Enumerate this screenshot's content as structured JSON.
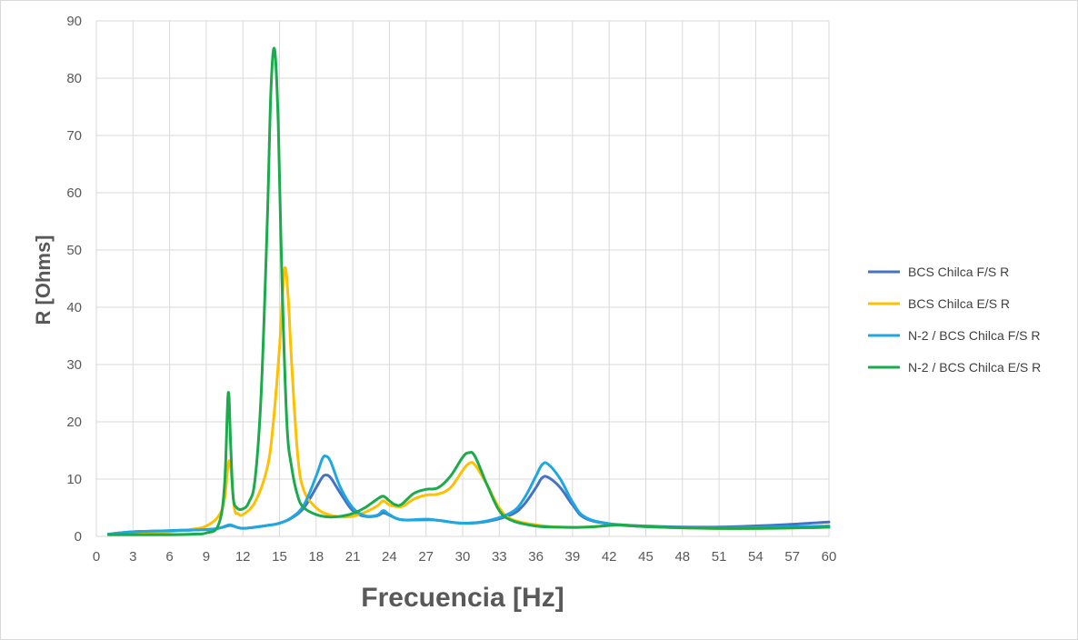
{
  "chart_data": {
    "type": "line",
    "title": "",
    "xlabel": "Frecuencia [Hz]",
    "ylabel": "R [Ohms]",
    "xlim": [
      0,
      60
    ],
    "ylim": [
      0,
      90
    ],
    "x_ticks": [
      0,
      3,
      6,
      9,
      12,
      15,
      18,
      21,
      24,
      27,
      30,
      33,
      36,
      39,
      42,
      45,
      48,
      51,
      54,
      57,
      60
    ],
    "y_ticks": [
      0,
      10,
      20,
      30,
      40,
      50,
      60,
      70,
      80,
      90
    ],
    "grid": true,
    "legend_position": "right",
    "series": [
      {
        "name": "BCS Chilca F/S R",
        "color": "#4472C4",
        "x": [
          1,
          3,
          6,
          9,
          10,
          10.7,
          11,
          11.5,
          12,
          13,
          14,
          15,
          16,
          17,
          18,
          18.5,
          18.8,
          19.2,
          20,
          21,
          22,
          23,
          23.5,
          24,
          25,
          27,
          28,
          30,
          32,
          34,
          35,
          36,
          36.5,
          37,
          38,
          39,
          40,
          42,
          45,
          50,
          55,
          60
        ],
        "y": [
          0.4,
          0.8,
          1.0,
          1.2,
          1.4,
          1.8,
          1.9,
          1.6,
          1.4,
          1.6,
          1.9,
          2.3,
          3.2,
          5.0,
          8.5,
          10.3,
          10.7,
          10.2,
          7.5,
          4.5,
          3.5,
          3.6,
          4.1,
          3.7,
          2.9,
          2.9,
          2.8,
          2.3,
          2.6,
          3.8,
          5.5,
          8.5,
          10.2,
          10.3,
          8.5,
          5.5,
          3.2,
          2.2,
          1.8,
          1.6,
          1.9,
          2.5
        ]
      },
      {
        "name": "BCS Chilca E/S R",
        "color": "#FFC000",
        "x": [
          1,
          3,
          6,
          8,
          9,
          10,
          10.5,
          10.9,
          11.3,
          11.6,
          12,
          13,
          14,
          14.5,
          15,
          15.4,
          15.7,
          16,
          16.5,
          17,
          18,
          19,
          20,
          21,
          22,
          23,
          23.5,
          24,
          25,
          26,
          27,
          28,
          29,
          30,
          30.5,
          31,
          32,
          33,
          34,
          36,
          38,
          40,
          42,
          43,
          45,
          50,
          55,
          60
        ],
        "y": [
          0.3,
          0.4,
          0.8,
          1.3,
          1.8,
          3.5,
          6.5,
          13.2,
          5.0,
          4.0,
          3.8,
          6.0,
          12.0,
          20.0,
          33.0,
          46.5,
          42.0,
          30.0,
          14.0,
          8.0,
          5.0,
          3.8,
          3.4,
          3.5,
          4.2,
          5.3,
          6.2,
          5.5,
          5.2,
          6.5,
          7.2,
          7.4,
          8.5,
          11.5,
          12.7,
          12.5,
          9.0,
          5.0,
          3.0,
          2.0,
          1.6,
          1.6,
          1.9,
          2.0,
          1.7,
          1.4,
          1.4,
          1.6
        ]
      },
      {
        "name": "N-2 / BCS Chilca F/S R",
        "color": "#1FA7E0",
        "x": [
          1,
          3,
          6,
          9,
          10,
          10.7,
          11,
          11.5,
          12,
          13,
          14,
          15,
          16,
          17,
          18,
          18.5,
          18.8,
          19.2,
          20,
          21,
          22,
          23,
          23.5,
          24,
          25,
          27,
          28,
          30,
          32,
          34,
          35,
          36,
          36.5,
          37,
          38,
          39,
          40,
          42,
          45,
          50,
          55,
          60
        ],
        "y": [
          0.4,
          0.8,
          1.0,
          1.2,
          1.4,
          1.9,
          2.0,
          1.6,
          1.4,
          1.6,
          1.9,
          2.3,
          3.3,
          5.5,
          10.5,
          13.5,
          14.0,
          13.0,
          8.5,
          5.0,
          3.6,
          3.7,
          4.5,
          3.8,
          2.9,
          3.0,
          2.8,
          2.3,
          2.7,
          4.2,
          6.5,
          10.5,
          12.5,
          12.6,
          10.0,
          6.0,
          3.4,
          2.2,
          1.7,
          1.5,
          1.6,
          1.8
        ]
      },
      {
        "name": "N-2 / BCS Chilca E/S R",
        "color": "#1BAA4C",
        "x": [
          1,
          3,
          6,
          8,
          9,
          10,
          10.5,
          10.8,
          11,
          11.2,
          11.5,
          12,
          12.5,
          13,
          13.5,
          14,
          14.3,
          14.6,
          14.9,
          15.2,
          15.6,
          16,
          16.5,
          17,
          18,
          19,
          20,
          21,
          22,
          23,
          23.5,
          24,
          24.5,
          25,
          26,
          27,
          28,
          29,
          30,
          30.5,
          31,
          32,
          33,
          34,
          36,
          38,
          40,
          42,
          43,
          45,
          50,
          55,
          60
        ],
        "y": [
          0.3,
          0.3,
          0.3,
          0.4,
          0.6,
          2.0,
          9.0,
          25.0,
          16.0,
          7.0,
          5.0,
          4.8,
          6.0,
          10.0,
          25.0,
          55.0,
          78.0,
          85.0,
          72.0,
          45.0,
          20.0,
          12.0,
          7.0,
          5.0,
          3.8,
          3.4,
          3.5,
          4.0,
          5.0,
          6.5,
          7.0,
          6.2,
          5.5,
          5.6,
          7.5,
          8.2,
          8.5,
          10.5,
          13.8,
          14.6,
          14.0,
          9.0,
          4.5,
          2.8,
          1.8,
          1.6,
          1.6,
          1.9,
          2.0,
          1.7,
          1.4,
          1.4,
          1.6
        ]
      }
    ]
  }
}
